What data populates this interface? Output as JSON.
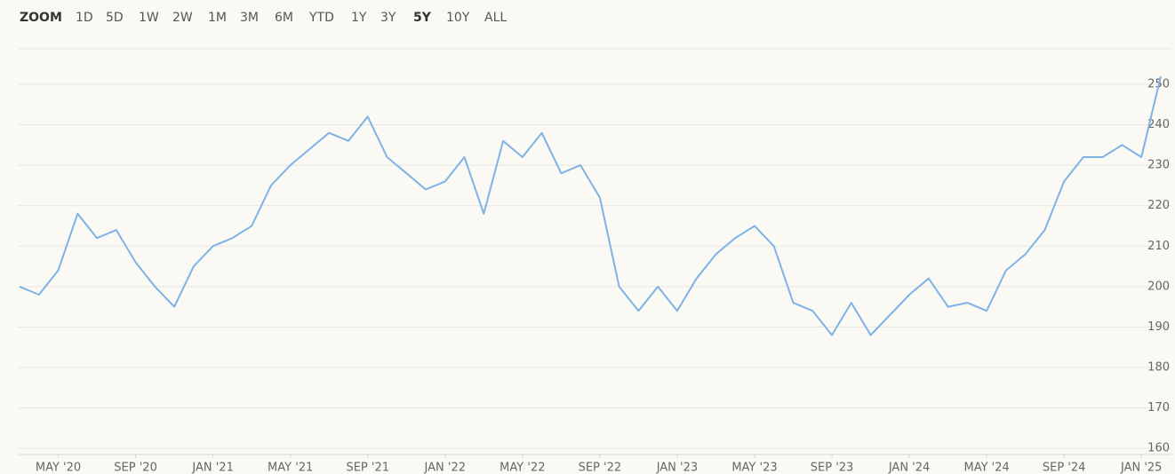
{
  "zoom": {
    "label": "ZOOM",
    "buttons": [
      "1D",
      "5D",
      "1W",
      "2W",
      "1M",
      "3M",
      "6M",
      "YTD",
      "1Y",
      "3Y",
      "5Y",
      "10Y",
      "ALL"
    ],
    "selected": "5Y"
  },
  "chart_data": {
    "type": "line",
    "x": [
      "2020-03",
      "2020-04",
      "2020-05",
      "2020-06",
      "2020-07",
      "2020-08",
      "2020-09",
      "2020-10",
      "2020-11",
      "2020-12",
      "2021-01",
      "2021-02",
      "2021-03",
      "2021-04",
      "2021-05",
      "2021-06",
      "2021-07",
      "2021-08",
      "2021-09",
      "2021-10",
      "2021-11",
      "2021-12",
      "2022-01",
      "2022-02",
      "2022-03",
      "2022-04",
      "2022-05",
      "2022-06",
      "2022-07",
      "2022-08",
      "2022-09",
      "2022-10",
      "2022-11",
      "2022-12",
      "2023-01",
      "2023-02",
      "2023-03",
      "2023-04",
      "2023-05",
      "2023-06",
      "2023-07",
      "2023-08",
      "2023-09",
      "2023-10",
      "2023-11",
      "2023-12",
      "2024-01",
      "2024-02",
      "2024-03",
      "2024-04",
      "2024-05",
      "2024-06",
      "2024-07",
      "2024-08",
      "2024-09",
      "2024-10",
      "2024-11",
      "2024-12",
      "2025-01",
      "2025-02"
    ],
    "series": [
      {
        "color": "#7eb3e8",
        "values": [
          200,
          198,
          204,
          218,
          212,
          214,
          206,
          200,
          195,
          205,
          210,
          212,
          215,
          225,
          230,
          234,
          238,
          236,
          242,
          232,
          228,
          224,
          226,
          232,
          218,
          236,
          232,
          238,
          228,
          230,
          222,
          200,
          194,
          200,
          194,
          202,
          208,
          212,
          215,
          210,
          196,
          194,
          188,
          196,
          188,
          193,
          198,
          202,
          195,
          196,
          194,
          204,
          208,
          214,
          226,
          232,
          232,
          235,
          232,
          252
        ]
      }
    ],
    "xlim": [
      "2020-03",
      "2025-02"
    ],
    "xticks": [
      {
        "value": "2020-05",
        "label": "MAY '20"
      },
      {
        "value": "2020-09",
        "label": "SEP '20"
      },
      {
        "value": "2021-01",
        "label": "JAN '21"
      },
      {
        "value": "2021-05",
        "label": "MAY '21"
      },
      {
        "value": "2021-09",
        "label": "SEP '21"
      },
      {
        "value": "2022-01",
        "label": "JAN '22"
      },
      {
        "value": "2022-05",
        "label": "MAY '22"
      },
      {
        "value": "2022-09",
        "label": "SEP '22"
      },
      {
        "value": "2023-01",
        "label": "JAN '23"
      },
      {
        "value": "2023-05",
        "label": "MAY '23"
      },
      {
        "value": "2023-09",
        "label": "SEP '23"
      },
      {
        "value": "2024-01",
        "label": "JAN '24"
      },
      {
        "value": "2024-05",
        "label": "MAY '24"
      },
      {
        "value": "2024-09",
        "label": "SEP '24"
      },
      {
        "value": "2025-01",
        "label": "JAN '25"
      }
    ],
    "ylim": [
      158.5,
      260
    ],
    "yticks": [
      160,
      170,
      180,
      190,
      200,
      210,
      220,
      230,
      240,
      250
    ],
    "grid": true
  }
}
